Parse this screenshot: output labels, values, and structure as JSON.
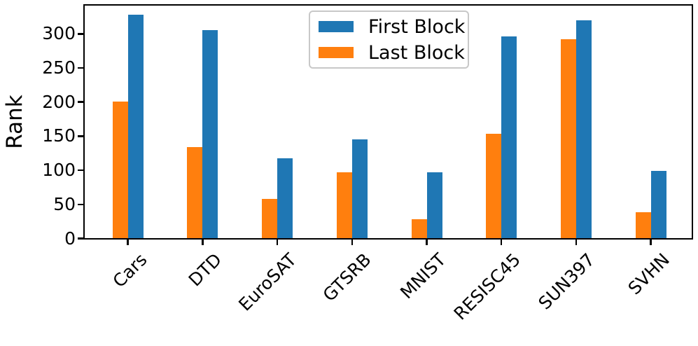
{
  "figure": {
    "background": "#ffffff",
    "spine_color": "#000000",
    "legend_border_color": "#c8c8c8"
  },
  "chart_data": {
    "type": "bar",
    "title": "",
    "xlabel": "",
    "ylabel": "Rank",
    "categories": [
      "Cars",
      "DTD",
      "EuroSAT",
      "GTSRB",
      "MNIST",
      "RESISC45",
      "SUN397",
      "SVHN"
    ],
    "series": [
      {
        "name": "First Block",
        "color": "#1f77b4",
        "values": [
          328,
          305,
          117,
          145,
          96,
          296,
          319,
          99
        ]
      },
      {
        "name": "Last Block",
        "color": "#ff7f0e",
        "values": [
          200,
          133,
          58,
          97,
          28,
          153,
          292,
          38
        ]
      }
    ],
    "ylim": [
      0,
      343
    ],
    "yticks": [
      0,
      50,
      100,
      150,
      200,
      250,
      300
    ],
    "grid": false,
    "legend_position": "upper center",
    "x_tick_rotation": 45
  }
}
